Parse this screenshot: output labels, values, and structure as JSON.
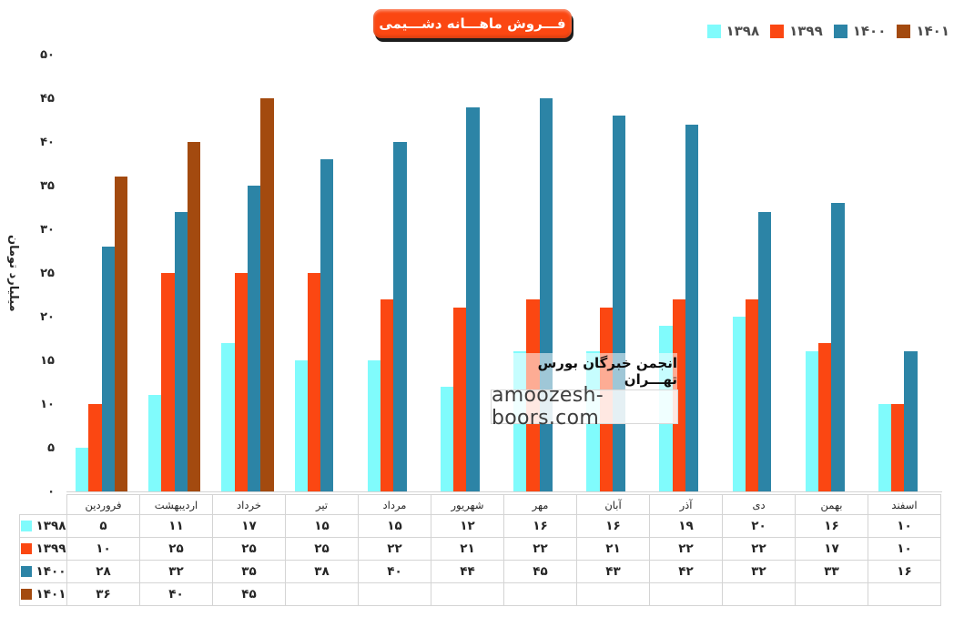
{
  "title": "فـــروش ماهـــانه دشـــیمی",
  "y_axis": {
    "title": "میلیارد تومان"
  },
  "watermark": {
    "line1": "انجمن خبرگان بورس تهـــران",
    "line2": "amoozesh-boors.com"
  },
  "fa_digits": "۰۱۲۳۴۵۶۷۸۹",
  "colors": {
    "title_bg": "#fb4712",
    "title_shadow": "#1d1d1d",
    "legend_text": "#4d4d4d",
    "axis_text": "#262626",
    "table_border": "#d4d4d4",
    "series_1398": "#80fbfc",
    "series_1399": "#fb4712",
    "series_1400": "#2c84a6",
    "series_1401": "#a34a0f"
  },
  "chart_data": {
    "type": "bar",
    "title": "فـــروش ماهـــانه دشـــیمی",
    "xlabel": "",
    "ylabel": "میلیارد تومان",
    "ylim": [
      0,
      50
    ],
    "y_ticks": [
      50,
      45,
      40,
      35,
      30,
      25,
      20,
      15,
      10,
      5,
      0
    ],
    "grid": false,
    "legend_position": "top-right",
    "data_table_shown": true,
    "categories": [
      "فروردین",
      "اردیبهشت",
      "خرداد",
      "تیر",
      "مرداد",
      "شهریور",
      "مهر",
      "آبان",
      "آذر",
      "دی",
      "بهمن",
      "اسفند"
    ],
    "series": [
      {
        "key": "1398",
        "name": "۱۳۹۸",
        "color": "#80fbfc",
        "values": [
          5,
          11,
          17,
          15,
          15,
          12,
          16,
          16,
          19,
          20,
          16,
          10
        ]
      },
      {
        "key": "1399",
        "name": "۱۳۹۹",
        "color": "#fb4712",
        "values": [
          10,
          25,
          25,
          25,
          22,
          21,
          22,
          21,
          22,
          22,
          17,
          10
        ]
      },
      {
        "key": "1400",
        "name": "۱۴۰۰",
        "color": "#2c84a6",
        "values": [
          28,
          32,
          35,
          38,
          40,
          44,
          45,
          43,
          42,
          32,
          33,
          16
        ]
      },
      {
        "key": "1401",
        "name": "۱۴۰۱",
        "color": "#a34a0f",
        "values": [
          36,
          40,
          45,
          null,
          null,
          null,
          null,
          null,
          null,
          null,
          null,
          null
        ]
      }
    ]
  }
}
